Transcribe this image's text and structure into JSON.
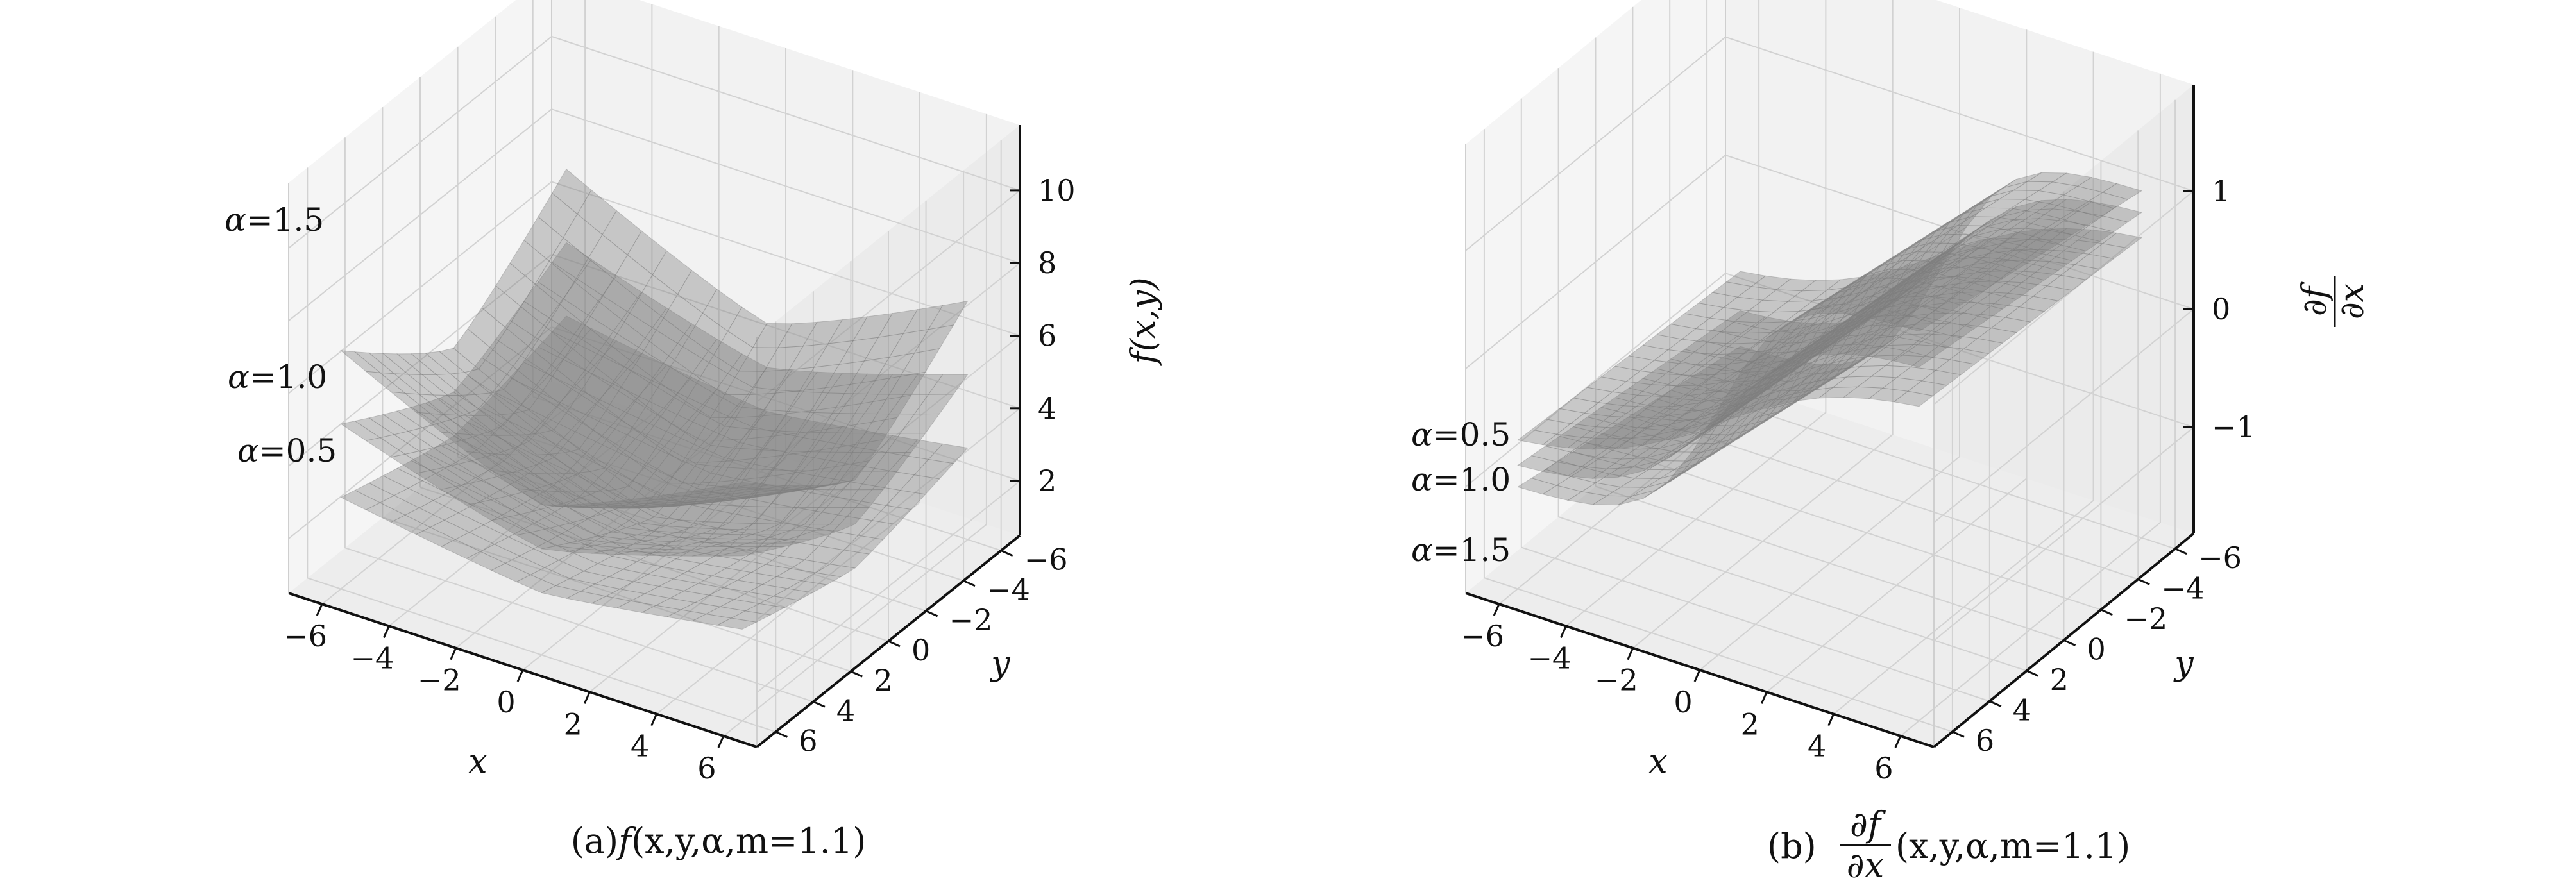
{
  "chart_data": [
    {
      "type": "surface3d",
      "caption": {
        "prefix": "(a)",
        "func": "f",
        "args": "(x,y,α,m=1.1)"
      },
      "xlabel": "x",
      "ylabel": "y",
      "zlabel": "f(x,y)",
      "xticks": [
        "−6",
        "−4",
        "−2",
        "0",
        "2",
        "4",
        "6"
      ],
      "yticks": [
        "−6",
        "−4",
        "−2",
        "0",
        "2",
        "4",
        "6"
      ],
      "zticks": [
        "2",
        "4",
        "6",
        "8",
        "10"
      ],
      "xlim": [
        -7,
        7
      ],
      "ylim": [
        -7,
        7
      ],
      "zlim": [
        0.5,
        11.8
      ],
      "grid": true,
      "surfaces": [
        {
          "label": "α=1.5",
          "alpha": 1.5
        },
        {
          "label": "α=1.0",
          "alpha": 1.0
        },
        {
          "label": "α=0.5",
          "alpha": 0.5
        }
      ],
      "surface_color": "#7f7f7f"
    },
    {
      "type": "surface3d",
      "caption": {
        "prefix": "(b)",
        "num": "∂f",
        "den": "∂x",
        "args": "(x,y,α,m=1.1)"
      },
      "xlabel": "x",
      "ylabel": "y",
      "zlabel": {
        "num": "∂f",
        "den": "∂x"
      },
      "xticks": [
        "−6",
        "−4",
        "−2",
        "0",
        "2",
        "4",
        "6"
      ],
      "yticks": [
        "−6",
        "−4",
        "−2",
        "0",
        "2",
        "4",
        "6"
      ],
      "zticks": [
        "−1",
        "0",
        "1"
      ],
      "xlim": [
        -7,
        7
      ],
      "ylim": [
        -7,
        7
      ],
      "zlim": [
        -1.9,
        1.9
      ],
      "grid": true,
      "surfaces": [
        {
          "label": "α=0.5",
          "alpha": 0.5
        },
        {
          "label": "α=1.0",
          "alpha": 1.0
        },
        {
          "label": "α=1.5",
          "alpha": 1.5
        }
      ],
      "surface_color": "#7f7f7f"
    }
  ]
}
